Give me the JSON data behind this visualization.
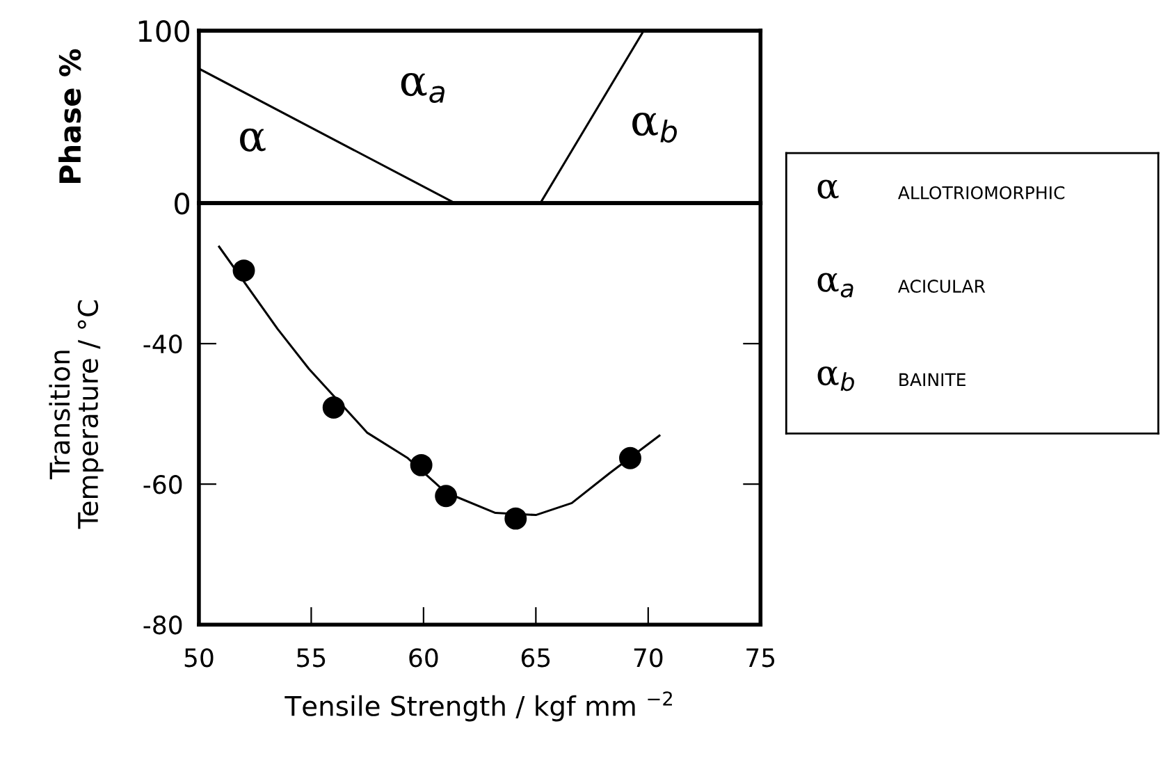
{
  "chart_data": [
    {
      "type": "line",
      "ylabel": "Phase %",
      "xlim": [
        50,
        75
      ],
      "ylim": [
        0,
        100
      ],
      "yticks": [
        0,
        100
      ],
      "tick_labels": "y",
      "grid": false,
      "legend": false,
      "marker": "none",
      "series": [
        {
          "color": "#000000",
          "x": [
            50,
            61.4
          ],
          "values": [
            78,
            0
          ]
        },
        {
          "color": "#000000",
          "x": [
            65.2,
            69.8
          ],
          "values": [
            0,
            100
          ]
        }
      ],
      "annotations": [
        "α",
        "α$_{a}$",
        "α$_{b}$"
      ]
    },
    {
      "type": "scatter",
      "xlabel": "Tensile Strength / kgf mm $^{−2}$",
      "ylabel": "Transition\nTemperature / °C",
      "xlim": [
        50,
        75
      ],
      "ylim": [
        -80,
        -20
      ],
      "xticks": [
        50,
        55,
        60,
        65,
        70,
        75
      ],
      "yticks": [
        -80,
        -60,
        -40
      ],
      "grid": false,
      "legend": false,
      "series": [
        {
          "marker": "circle",
          "color": "#000000",
          "x": [
            52.0,
            56.0,
            59.9,
            61.0,
            64.1,
            69.2
          ],
          "values": [
            -29.6,
            -49.1,
            -57.3,
            -61.7,
            -64.9,
            -56.3
          ]
        },
        {
          "type": "line",
          "marker": "none",
          "color": "#000000",
          "x": [
            50.9,
            53.5,
            54.9,
            57.5,
            59.3,
            61.0,
            63.2,
            65.0,
            66.6,
            68.3,
            70.5
          ],
          "values": [
            -26.2,
            -37.9,
            -43.6,
            -52.7,
            -56.3,
            -61.2,
            -64.1,
            -64.4,
            -62.7,
            -58.4,
            -53.1
          ]
        }
      ]
    },
    {
      "type": "other",
      "annotations": [
        "α",
        "ALLOTRIOMORPHIC",
        "α$_{a}$",
        "ACICULAR",
        "α$_{b}$",
        "BAINITE"
      ]
    }
  ]
}
